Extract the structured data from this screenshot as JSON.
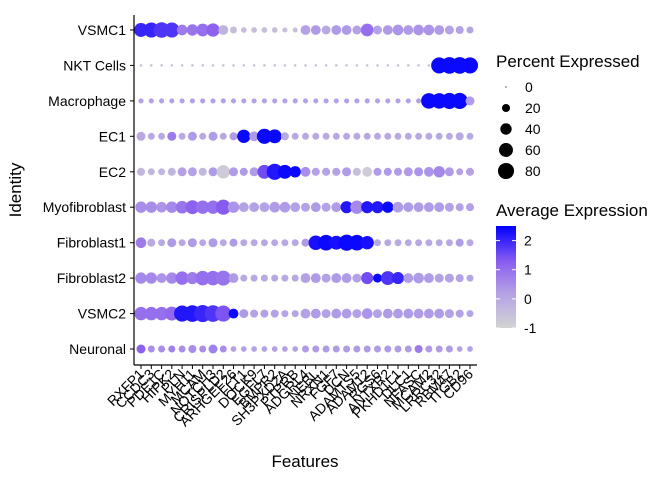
{
  "chart_data": {
    "type": "dotplot",
    "xlabel": "Features",
    "ylabel": "Identity",
    "features": [
      "RXFP1",
      "CCDC3",
      "PDE1C",
      "HIPK2",
      "PLN",
      "MYH11",
      "MCAM",
      "NOTCH3",
      "CRISPLD2",
      "ARHGEF26",
      "FLT1",
      "DOCK9",
      "EGFL7",
      "BMPR2",
      "SH3PXD2A",
      "PTPRB",
      "ADGRL4",
      "NEBL",
      "NRXN1",
      "FGF7",
      "DCN",
      "ADAMTS5",
      "ADAM12",
      "RGS6",
      "ANTXR2",
      "PKHD1L1",
      "DLC1",
      "NFASC",
      "MCAM2",
      "LRRC32",
      "RBM47",
      "ITGB2",
      "CD96"
    ],
    "feature_labels": [
      "RXFP1",
      "CCDC3",
      "PDE1C",
      "HIPK2",
      "PLN",
      "MYH11",
      "MCAM",
      "NOTCH3",
      "CRISPLD2",
      "ARHGEF26",
      "FLT1",
      "DOCK9",
      "EGFL7",
      "BMPR2",
      "SH3PXD2A",
      "PTPRB",
      "ADGRL4",
      "NEBL",
      "NRXN1",
      "FGF7",
      "DCN",
      "ADAMTS5",
      "ADAM12",
      "RGS6",
      "ANTXR2",
      "PKHD1L1",
      "DLC1",
      "NFASC",
      "MCAM2",
      "LRRC32",
      "RBM47",
      "ITGB2",
      "CD96"
    ],
    "identities": [
      "VSMC1",
      "NKT Cells",
      "Macrophage",
      "EC1",
      "EC2",
      "Myofibroblast",
      "Fibroblast1",
      "Fibroblast2",
      "VSMC2",
      "Neuronal"
    ],
    "color_range": [
      -1,
      2.5
    ],
    "size_legend": [
      0,
      20,
      40,
      60,
      80
    ],
    "size_legend_labels": [
      "0",
      "20",
      "40",
      "60",
      "80"
    ],
    "color_legend_labels": [
      "2",
      "1",
      "0",
      "-1"
    ],
    "color_legend_values": [
      2,
      1,
      0,
      -1
    ],
    "size_legend_title": "Percent Expressed",
    "color_legend_title": "Average Expression",
    "pct": [
      [
        60,
        70,
        75,
        70,
        35,
        40,
        50,
        55,
        30,
        15,
        10,
        10,
        10,
        10,
        8,
        8,
        30,
        30,
        25,
        30,
        30,
        25,
        50,
        25,
        30,
        35,
        30,
        35,
        35,
        30,
        25,
        20,
        15
      ],
      [
        2,
        2,
        2,
        2,
        2,
        2,
        2,
        2,
        2,
        2,
        2,
        2,
        2,
        2,
        2,
        2,
        2,
        2,
        2,
        2,
        2,
        2,
        2,
        2,
        2,
        2,
        2,
        2,
        2,
        80,
        85,
        85,
        80
      ],
      [
        8,
        8,
        8,
        8,
        8,
        8,
        8,
        8,
        8,
        8,
        8,
        8,
        8,
        8,
        8,
        8,
        8,
        8,
        8,
        8,
        8,
        8,
        8,
        8,
        8,
        8,
        8,
        8,
        75,
        75,
        80,
        80,
        25
      ],
      [
        25,
        15,
        15,
        25,
        15,
        25,
        15,
        25,
        15,
        20,
        55,
        30,
        70,
        60,
        20,
        15,
        15,
        15,
        15,
        15,
        15,
        15,
        15,
        15,
        15,
        15,
        15,
        15,
        15,
        15,
        15,
        20,
        15
      ],
      [
        20,
        15,
        15,
        20,
        25,
        25,
        20,
        25,
        55,
        25,
        20,
        25,
        60,
        80,
        60,
        40,
        30,
        20,
        20,
        20,
        25,
        20,
        30,
        20,
        20,
        20,
        25,
        25,
        30,
        40,
        25,
        15,
        20
      ],
      [
        40,
        40,
        35,
        40,
        50,
        60,
        55,
        55,
        70,
        40,
        30,
        30,
        30,
        35,
        35,
        30,
        25,
        30,
        25,
        30,
        45,
        55,
        45,
        45,
        40,
        35,
        30,
        30,
        30,
        30,
        25,
        20,
        20
      ],
      [
        35,
        20,
        15,
        25,
        15,
        25,
        15,
        25,
        15,
        20,
        15,
        15,
        15,
        15,
        15,
        15,
        20,
        65,
        75,
        60,
        80,
        75,
        55,
        15,
        15,
        15,
        15,
        15,
        15,
        15,
        15,
        20,
        15
      ],
      [
        40,
        40,
        30,
        40,
        55,
        45,
        65,
        65,
        70,
        30,
        15,
        15,
        15,
        15,
        15,
        15,
        30,
        30,
        25,
        30,
        30,
        25,
        45,
        25,
        60,
        45,
        30,
        35,
        30,
        25,
        25,
        20,
        15
      ],
      [
        55,
        55,
        55,
        60,
        80,
        85,
        90,
        85,
        80,
        30,
        25,
        20,
        20,
        20,
        15,
        15,
        30,
        30,
        25,
        30,
        30,
        25,
        35,
        25,
        30,
        30,
        30,
        30,
        30,
        30,
        25,
        20,
        15
      ],
      [
        25,
        15,
        15,
        15,
        15,
        20,
        15,
        25,
        15,
        10,
        10,
        10,
        10,
        10,
        10,
        10,
        15,
        15,
        15,
        15,
        15,
        15,
        15,
        15,
        15,
        15,
        15,
        20,
        15,
        15,
        15,
        10,
        10
      ]
    ],
    "avg": [
      [
        2.0,
        2.0,
        1.8,
        1.8,
        0.8,
        0.9,
        1.0,
        1.2,
        -0.2,
        -0.5,
        -0.5,
        -0.5,
        -0.5,
        -0.5,
        -0.5,
        -0.5,
        0.2,
        0.3,
        0.0,
        0.3,
        0.3,
        0.2,
        1.0,
        0.2,
        0.3,
        0.4,
        0.3,
        0.4,
        0.4,
        0.3,
        0.2,
        0.2,
        0.1
      ],
      [
        -0.5,
        -0.5,
        -0.5,
        -0.5,
        -0.5,
        -0.5,
        -0.5,
        -0.5,
        -0.5,
        -0.5,
        -0.5,
        -0.5,
        -0.5,
        -0.5,
        -0.5,
        -0.5,
        -0.5,
        -0.5,
        -0.5,
        -0.5,
        -0.5,
        -0.5,
        -0.5,
        -0.5,
        -0.5,
        -0.5,
        -0.5,
        -0.5,
        -0.5,
        2.4,
        2.4,
        2.4,
        2.4
      ],
      [
        0.2,
        0.2,
        0.2,
        0.2,
        0.2,
        0.2,
        0.2,
        0.2,
        0.2,
        0.2,
        0.2,
        0.2,
        0.2,
        0.2,
        0.2,
        0.2,
        0.2,
        0.2,
        0.2,
        0.2,
        0.2,
        0.2,
        0.2,
        0.2,
        0.2,
        0.2,
        0.2,
        0.2,
        2.4,
        2.4,
        2.4,
        2.4,
        0.3
      ],
      [
        0.0,
        0.0,
        0.0,
        0.8,
        0.0,
        0.3,
        0.0,
        0.3,
        0.0,
        0.3,
        2.4,
        0.3,
        2.4,
        2.4,
        0.0,
        0.0,
        0.0,
        0.0,
        0.0,
        0.0,
        0.0,
        0.0,
        0.0,
        0.0,
        0.0,
        0.0,
        0.0,
        0.0,
        0.0,
        0.0,
        0.0,
        0.0,
        0.0
      ],
      [
        -0.3,
        -0.3,
        -0.3,
        -0.3,
        0.2,
        0.2,
        -0.3,
        0.3,
        -0.8,
        0.3,
        0.3,
        0.3,
        1.5,
        2.2,
        2.4,
        2.4,
        0.5,
        0.2,
        0.2,
        0.2,
        0.3,
        -0.5,
        -0.8,
        0.3,
        0.3,
        0.3,
        0.3,
        0.4,
        0.4,
        0.6,
        0.3,
        0.2,
        0.2
      ],
      [
        0.5,
        0.5,
        0.4,
        0.6,
        0.9,
        1.2,
        1.0,
        1.0,
        1.3,
        0.4,
        0.2,
        0.2,
        0.2,
        0.3,
        0.3,
        0.2,
        0.2,
        0.3,
        0.2,
        0.3,
        2.2,
        0.6,
        2.2,
        2.2,
        2.4,
        0.3,
        0.3,
        0.3,
        0.3,
        0.3,
        0.2,
        0.2,
        0.2
      ],
      [
        0.8,
        0.0,
        0.0,
        0.3,
        0.0,
        0.3,
        0.0,
        0.3,
        0.0,
        0.3,
        0.0,
        0.0,
        0.0,
        0.0,
        0.0,
        0.0,
        0.3,
        2.3,
        2.4,
        2.3,
        2.4,
        2.4,
        2.3,
        0.0,
        0.0,
        0.0,
        0.0,
        0.0,
        0.0,
        0.0,
        0.0,
        0.3,
        0.0
      ],
      [
        0.6,
        0.6,
        0.4,
        0.6,
        1.0,
        0.8,
        1.0,
        1.0,
        0.9,
        0.3,
        0.0,
        0.0,
        0.0,
        0.0,
        0.0,
        0.0,
        0.2,
        0.3,
        0.2,
        0.3,
        0.3,
        0.2,
        1.5,
        2.4,
        1.8,
        2.0,
        0.3,
        0.3,
        0.3,
        0.2,
        0.2,
        0.2,
        0.1
      ],
      [
        1.0,
        1.0,
        1.0,
        1.1,
        2.2,
        2.2,
        2.0,
        1.8,
        1.4,
        2.4,
        0.3,
        0.2,
        0.2,
        0.2,
        0.1,
        0.1,
        0.2,
        0.3,
        0.2,
        0.3,
        0.3,
        0.2,
        0.4,
        0.2,
        0.3,
        0.3,
        0.3,
        0.3,
        0.3,
        0.3,
        0.2,
        0.2,
        0.1
      ],
      [
        1.2,
        0.5,
        0.5,
        0.7,
        0.5,
        0.5,
        0.5,
        0.7,
        0.5,
        0.2,
        0.2,
        0.2,
        0.2,
        0.2,
        0.2,
        0.2,
        0.3,
        0.3,
        0.3,
        0.3,
        0.3,
        0.3,
        0.3,
        0.3,
        0.3,
        0.3,
        0.3,
        0.8,
        0.3,
        0.3,
        0.3,
        0.2,
        0.2
      ]
    ]
  }
}
